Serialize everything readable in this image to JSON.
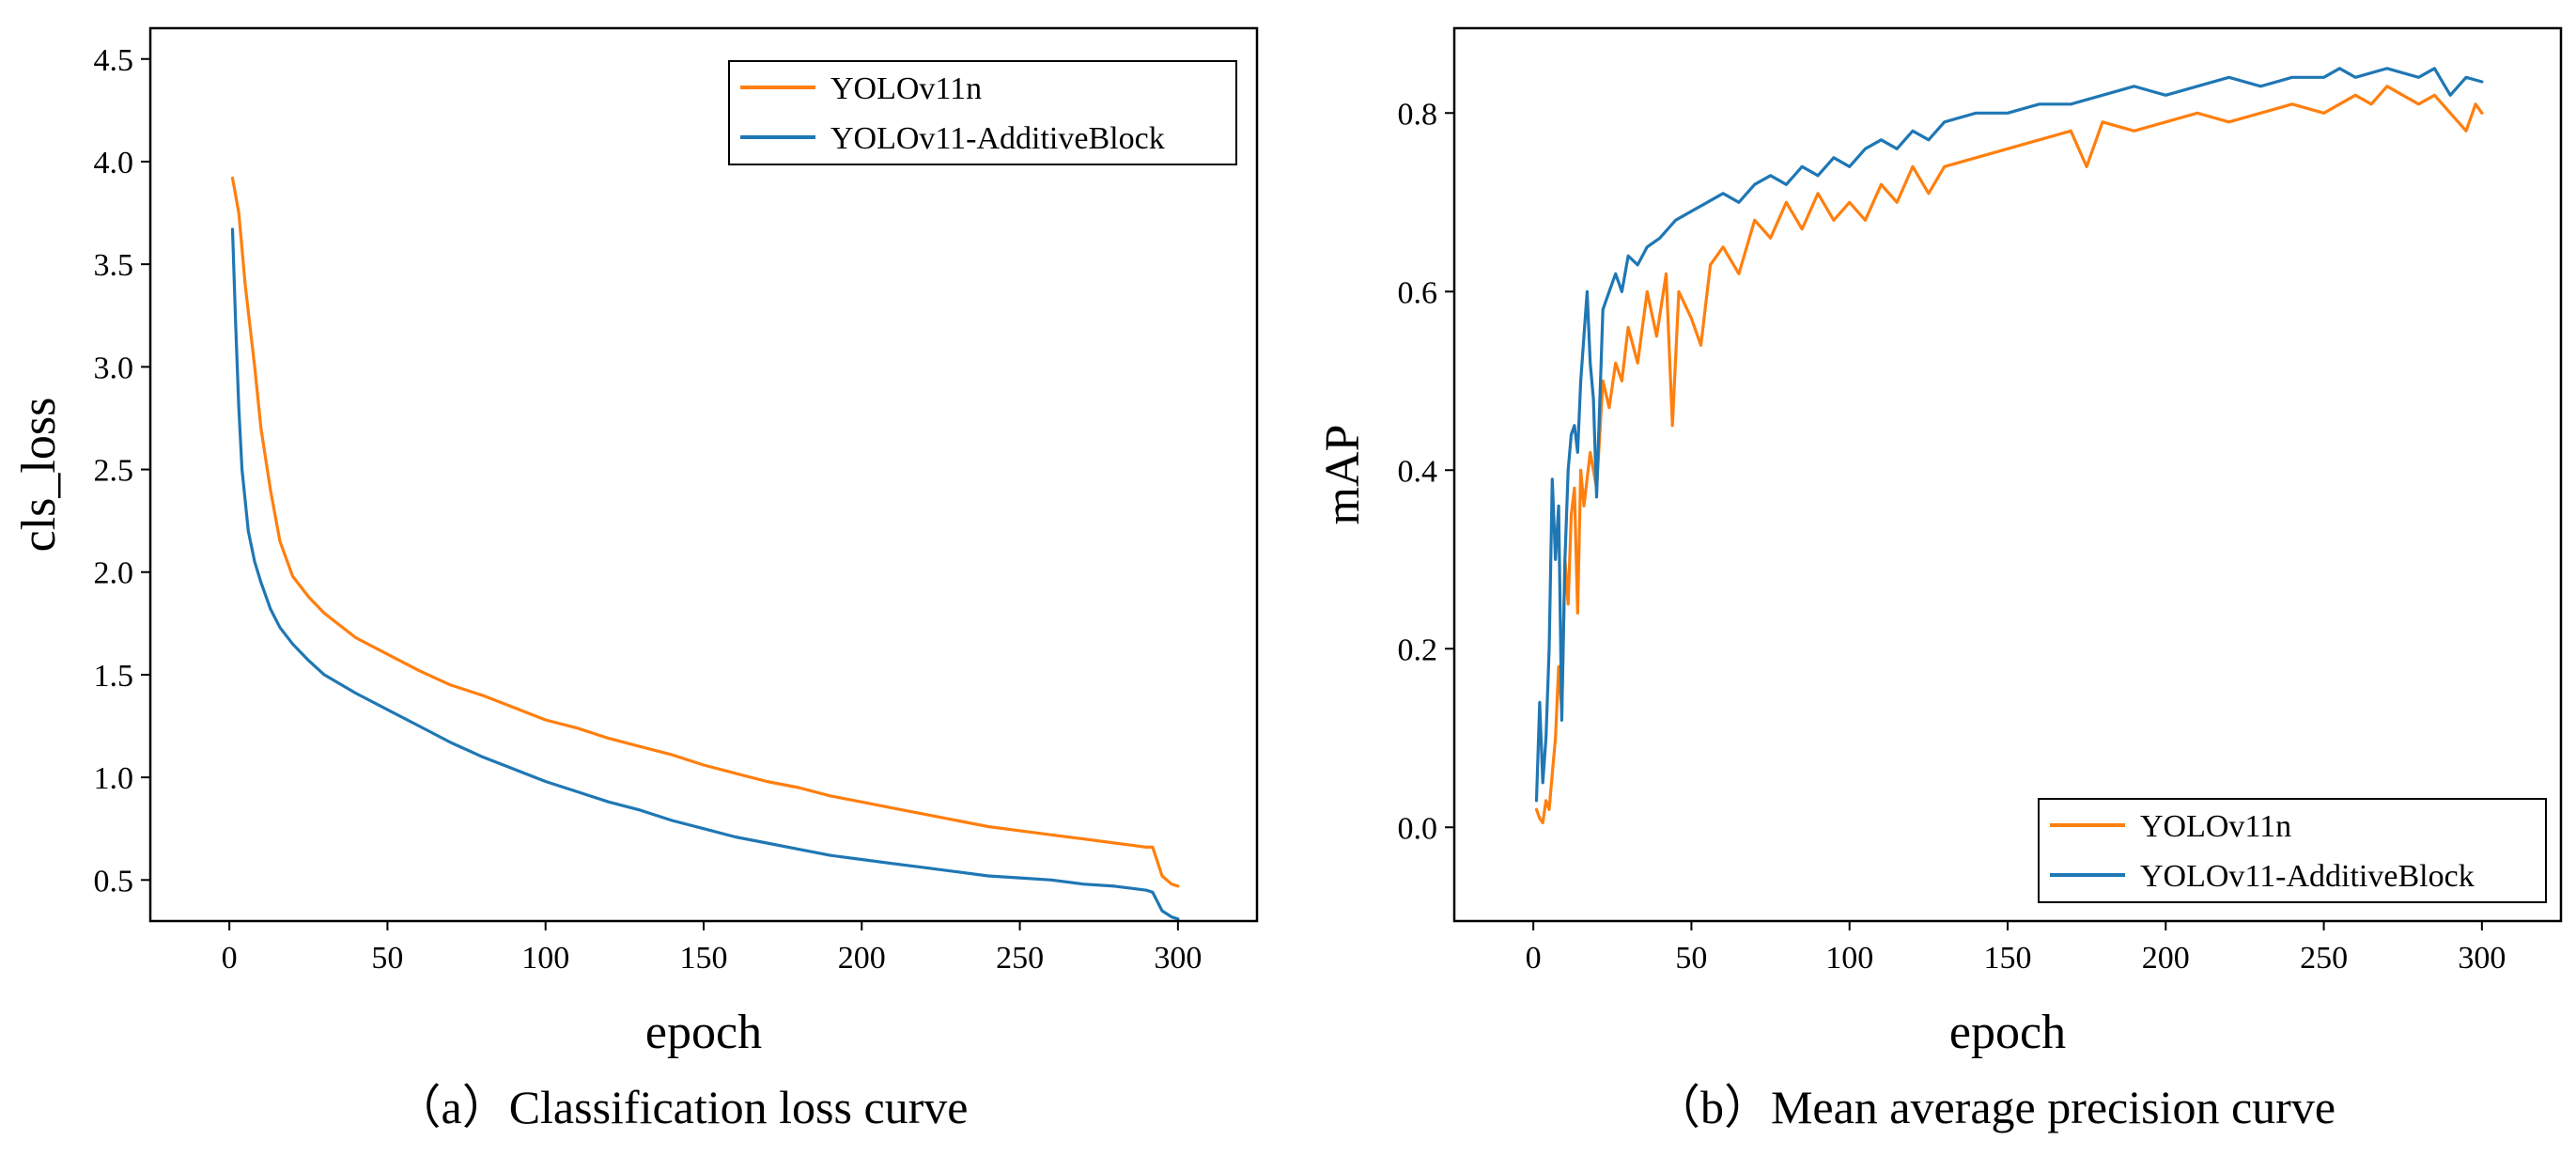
{
  "charts": [
    {
      "id": "loss",
      "caption": "（a）Classification loss curve",
      "chart": {
        "type": "line",
        "xlabel": "epoch",
        "ylabel": "cls_loss",
        "xlim": [
          -25,
          325
        ],
        "ylim": [
          0.3,
          4.65
        ],
        "xticks": [
          0,
          50,
          100,
          150,
          200,
          250,
          300
        ],
        "xtick_labels": [
          "0",
          "50",
          "100",
          "150",
          "200",
          "250",
          "300"
        ],
        "yticks": [
          0.5,
          1.0,
          1.5,
          2.0,
          2.5,
          3.0,
          3.5,
          4.0,
          4.5
        ],
        "ytick_labels": [
          "0.5",
          "1.0",
          "1.5",
          "2.0",
          "2.5",
          "3.0",
          "3.5",
          "4.0",
          "4.5"
        ],
        "grid": false,
        "legend": "top-right",
        "series": [
          {
            "name": "YOLOv11n",
            "color": "#FF7F0E",
            "x": [
              1,
              3,
              5,
              8,
              10,
              13,
              16,
              20,
              25,
              30,
              40,
              50,
              60,
              70,
              80,
              90,
              100,
              110,
              120,
              130,
              140,
              150,
              160,
              170,
              180,
              190,
              200,
              210,
              220,
              230,
              240,
              250,
              260,
              270,
              280,
              285,
              290,
              292,
              295,
              298,
              300
            ],
            "values": [
              3.92,
              3.75,
              3.4,
              3.0,
              2.7,
              2.4,
              2.15,
              1.98,
              1.88,
              1.8,
              1.68,
              1.6,
              1.52,
              1.45,
              1.4,
              1.34,
              1.28,
              1.24,
              1.19,
              1.15,
              1.11,
              1.06,
              1.02,
              0.98,
              0.95,
              0.91,
              0.88,
              0.85,
              0.82,
              0.79,
              0.76,
              0.74,
              0.72,
              0.7,
              0.68,
              0.67,
              0.66,
              0.66,
              0.52,
              0.48,
              0.47
            ]
          },
          {
            "name": "YOLOv11-AdditiveBlock",
            "color": "#1F77B4",
            "x": [
              1,
              2,
              3,
              4,
              6,
              8,
              10,
              13,
              16,
              20,
              25,
              30,
              40,
              50,
              60,
              70,
              80,
              90,
              100,
              110,
              120,
              130,
              140,
              150,
              160,
              170,
              180,
              190,
              200,
              210,
              220,
              230,
              240,
              250,
              260,
              270,
              280,
              285,
              290,
              292,
              295,
              298,
              300
            ],
            "values": [
              3.67,
              3.2,
              2.8,
              2.5,
              2.2,
              2.05,
              1.95,
              1.82,
              1.73,
              1.65,
              1.57,
              1.5,
              1.41,
              1.33,
              1.25,
              1.17,
              1.1,
              1.04,
              0.98,
              0.93,
              0.88,
              0.84,
              0.79,
              0.75,
              0.71,
              0.68,
              0.65,
              0.62,
              0.6,
              0.58,
              0.56,
              0.54,
              0.52,
              0.51,
              0.5,
              0.48,
              0.47,
              0.46,
              0.45,
              0.44,
              0.35,
              0.32,
              0.31
            ]
          }
        ]
      }
    },
    {
      "id": "map",
      "caption": "（b）Mean average precision curve",
      "chart": {
        "type": "line",
        "xlabel": "epoch",
        "ylabel": "mAP",
        "xlim": [
          -25,
          325
        ],
        "ylim": [
          -0.105,
          0.895
        ],
        "xticks": [
          0,
          50,
          100,
          150,
          200,
          250,
          300
        ],
        "xtick_labels": [
          "0",
          "50",
          "100",
          "150",
          "200",
          "250",
          "300"
        ],
        "yticks": [
          0.0,
          0.2,
          0.4,
          0.6,
          0.8
        ],
        "ytick_labels": [
          "0.0",
          "0.2",
          "0.4",
          "0.6",
          "0.8"
        ],
        "grid": false,
        "legend": "bottom-right",
        "series": [
          {
            "name": "YOLOv11n",
            "color": "#FF7F0E",
            "x": [
              1,
              2,
              3,
              4,
              5,
              6,
              7,
              8,
              9,
              10,
              11,
              12,
              13,
              14,
              15,
              16,
              18,
              20,
              22,
              24,
              26,
              28,
              30,
              33,
              36,
              39,
              42,
              44,
              46,
              50,
              53,
              56,
              60,
              65,
              70,
              75,
              80,
              85,
              90,
              95,
              100,
              105,
              110,
              115,
              120,
              125,
              130,
              140,
              150,
              160,
              170,
              175,
              180,
              190,
              200,
              210,
              220,
              230,
              240,
              250,
              260,
              265,
              270,
              275,
              280,
              285,
              290,
              295,
              298,
              300
            ],
            "values": [
              0.02,
              0.01,
              0.005,
              0.03,
              0.02,
              0.06,
              0.1,
              0.18,
              0.13,
              0.3,
              0.25,
              0.35,
              0.38,
              0.24,
              0.4,
              0.36,
              0.42,
              0.38,
              0.5,
              0.47,
              0.52,
              0.5,
              0.56,
              0.52,
              0.6,
              0.55,
              0.62,
              0.45,
              0.6,
              0.57,
              0.54,
              0.63,
              0.65,
              0.62,
              0.68,
              0.66,
              0.7,
              0.67,
              0.71,
              0.68,
              0.7,
              0.68,
              0.72,
              0.7,
              0.74,
              0.71,
              0.74,
              0.75,
              0.76,
              0.77,
              0.78,
              0.74,
              0.79,
              0.78,
              0.79,
              0.8,
              0.79,
              0.8,
              0.81,
              0.8,
              0.82,
              0.81,
              0.83,
              0.82,
              0.81,
              0.82,
              0.8,
              0.78,
              0.81,
              0.8
            ]
          },
          {
            "name": "YOLOv11-AdditiveBlock",
            "color": "#1F77B4",
            "x": [
              1,
              2,
              3,
              4,
              5,
              6,
              7,
              8,
              9,
              10,
              11,
              12,
              13,
              14,
              15,
              16,
              17,
              18,
              19,
              20,
              22,
              24,
              26,
              28,
              30,
              33,
              36,
              40,
              45,
              50,
              55,
              60,
              65,
              70,
              75,
              80,
              85,
              90,
              95,
              100,
              105,
              110,
              115,
              120,
              125,
              130,
              140,
              150,
              160,
              170,
              180,
              190,
              200,
              210,
              220,
              230,
              240,
              250,
              255,
              260,
              270,
              280,
              285,
              290,
              295,
              300
            ],
            "values": [
              0.03,
              0.14,
              0.05,
              0.1,
              0.2,
              0.39,
              0.3,
              0.36,
              0.12,
              0.3,
              0.4,
              0.44,
              0.45,
              0.42,
              0.5,
              0.55,
              0.6,
              0.52,
              0.48,
              0.37,
              0.58,
              0.6,
              0.62,
              0.6,
              0.64,
              0.63,
              0.65,
              0.66,
              0.68,
              0.69,
              0.7,
              0.71,
              0.7,
              0.72,
              0.73,
              0.72,
              0.74,
              0.73,
              0.75,
              0.74,
              0.76,
              0.77,
              0.76,
              0.78,
              0.77,
              0.79,
              0.8,
              0.8,
              0.81,
              0.81,
              0.82,
              0.83,
              0.82,
              0.83,
              0.84,
              0.83,
              0.84,
              0.84,
              0.85,
              0.84,
              0.85,
              0.84,
              0.85,
              0.82,
              0.84,
              0.835
            ]
          }
        ]
      }
    }
  ]
}
